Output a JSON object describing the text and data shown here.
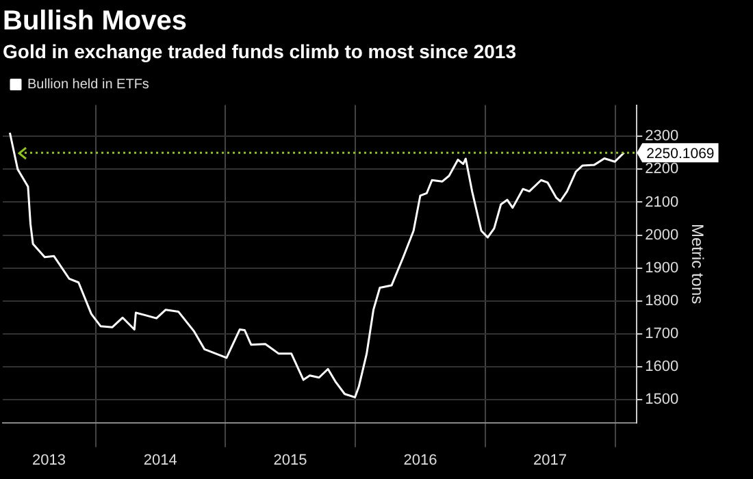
{
  "chart_data": {
    "type": "line",
    "title": "Bullish Moves",
    "subtitle": "Gold in exchange traded funds climb to most since 2013",
    "ylabel": "Metric tons",
    "legend": "top left",
    "grid": true,
    "marker": "none",
    "line_style": "solid",
    "xlim": [
      "2013-04-15",
      "2018-03-03"
    ],
    "xticks": [
      {
        "value": "2013-08-23",
        "label": "2013"
      },
      {
        "value": "2014-01-01",
        "label": null
      },
      {
        "value": "2014-07-02",
        "label": "2014"
      },
      {
        "value": "2015-01-01",
        "label": null
      },
      {
        "value": "2015-07-02",
        "label": "2015"
      },
      {
        "value": "2016-01-01",
        "label": null
      },
      {
        "value": "2016-07-02",
        "label": "2016"
      },
      {
        "value": "2017-01-01",
        "label": null
      },
      {
        "value": "2017-07-02",
        "label": "2017"
      },
      {
        "value": "2018-01-01",
        "label": null
      }
    ],
    "ylim": [
      1430,
      2395
    ],
    "yticks": [
      1500,
      1600,
      1700,
      1800,
      1900,
      2000,
      2100,
      2200,
      2300
    ],
    "ref_lines": [
      {
        "axis": "y",
        "value": 2250.1069,
        "color": "#8fc31f",
        "line_style": "dotted"
      }
    ],
    "series": [
      {
        "name": "Bullion held in ETFs",
        "color": "#ffffff",
        "x": [
          "2013-05-05",
          "2013-05-27",
          "2013-06-25",
          "2013-07-02",
          "2013-07-09",
          "2013-08-11",
          "2013-09-06",
          "2013-10-19",
          "2013-11-14",
          "2013-12-20",
          "2014-01-15",
          "2014-02-17",
          "2014-03-18",
          "2014-04-20",
          "2014-04-24",
          "2014-05-19",
          "2014-06-21",
          "2014-07-17",
          "2014-08-22",
          "2014-10-05",
          "2014-11-03",
          "2015-01-04",
          "2015-02-10",
          "2015-02-24",
          "2015-03-14",
          "2015-04-23",
          "2015-05-30",
          "2015-07-05",
          "2015-08-08",
          "2015-08-26",
          "2015-09-21",
          "2015-10-16",
          "2015-11-07",
          "2015-12-02",
          "2015-12-31",
          "2016-01-11",
          "2016-02-02",
          "2016-02-21",
          "2016-03-10",
          "2016-04-12",
          "2016-05-15",
          "2016-06-13",
          "2016-07-02",
          "2016-07-20",
          "2016-08-04",
          "2016-09-02",
          "2016-09-21",
          "2016-10-16",
          "2016-10-31",
          "2016-11-07",
          "2016-11-25",
          "2016-12-21",
          "2017-01-08",
          "2017-01-26",
          "2017-02-14",
          "2017-03-04",
          "2017-03-19",
          "2017-04-17",
          "2017-05-05",
          "2017-06-07",
          "2017-06-25",
          "2017-07-20",
          "2017-07-31",
          "2017-08-19",
          "2017-09-13",
          "2017-10-01",
          "2017-11-03",
          "2017-12-02",
          "2017-12-31",
          "2018-01-26"
        ],
        "values": [
          2311,
          2200,
          2147,
          2033,
          1973,
          1933,
          1936,
          1867,
          1856,
          1760,
          1723,
          1720,
          1749,
          1713,
          1764,
          1757,
          1747,
          1773,
          1767,
          1707,
          1653,
          1627,
          1713,
          1711,
          1667,
          1669,
          1640,
          1640,
          1560,
          1573,
          1567,
          1593,
          1553,
          1517,
          1507,
          1540,
          1640,
          1773,
          1840,
          1847,
          1933,
          2013,
          2120,
          2127,
          2167,
          2163,
          2180,
          2229,
          2216,
          2232,
          2133,
          2013,
          1993,
          2020,
          2093,
          2107,
          2083,
          2140,
          2133,
          2167,
          2160,
          2113,
          2103,
          2133,
          2193,
          2211,
          2213,
          2233,
          2223,
          2250.1069
        ],
        "value_labels": [
          null,
          null,
          null,
          null,
          null,
          null,
          null,
          null,
          null,
          null,
          null,
          null,
          null,
          null,
          null,
          null,
          null,
          null,
          null,
          null,
          null,
          null,
          null,
          null,
          null,
          null,
          null,
          null,
          null,
          null,
          null,
          null,
          null,
          null,
          null,
          null,
          null,
          null,
          null,
          null,
          null,
          null,
          null,
          null,
          null,
          null,
          null,
          null,
          null,
          null,
          null,
          null,
          null,
          null,
          null,
          null,
          null,
          null,
          null,
          null,
          null,
          null,
          null,
          null,
          null,
          null,
          null,
          null,
          null,
          "2250.1069"
        ]
      }
    ]
  }
}
